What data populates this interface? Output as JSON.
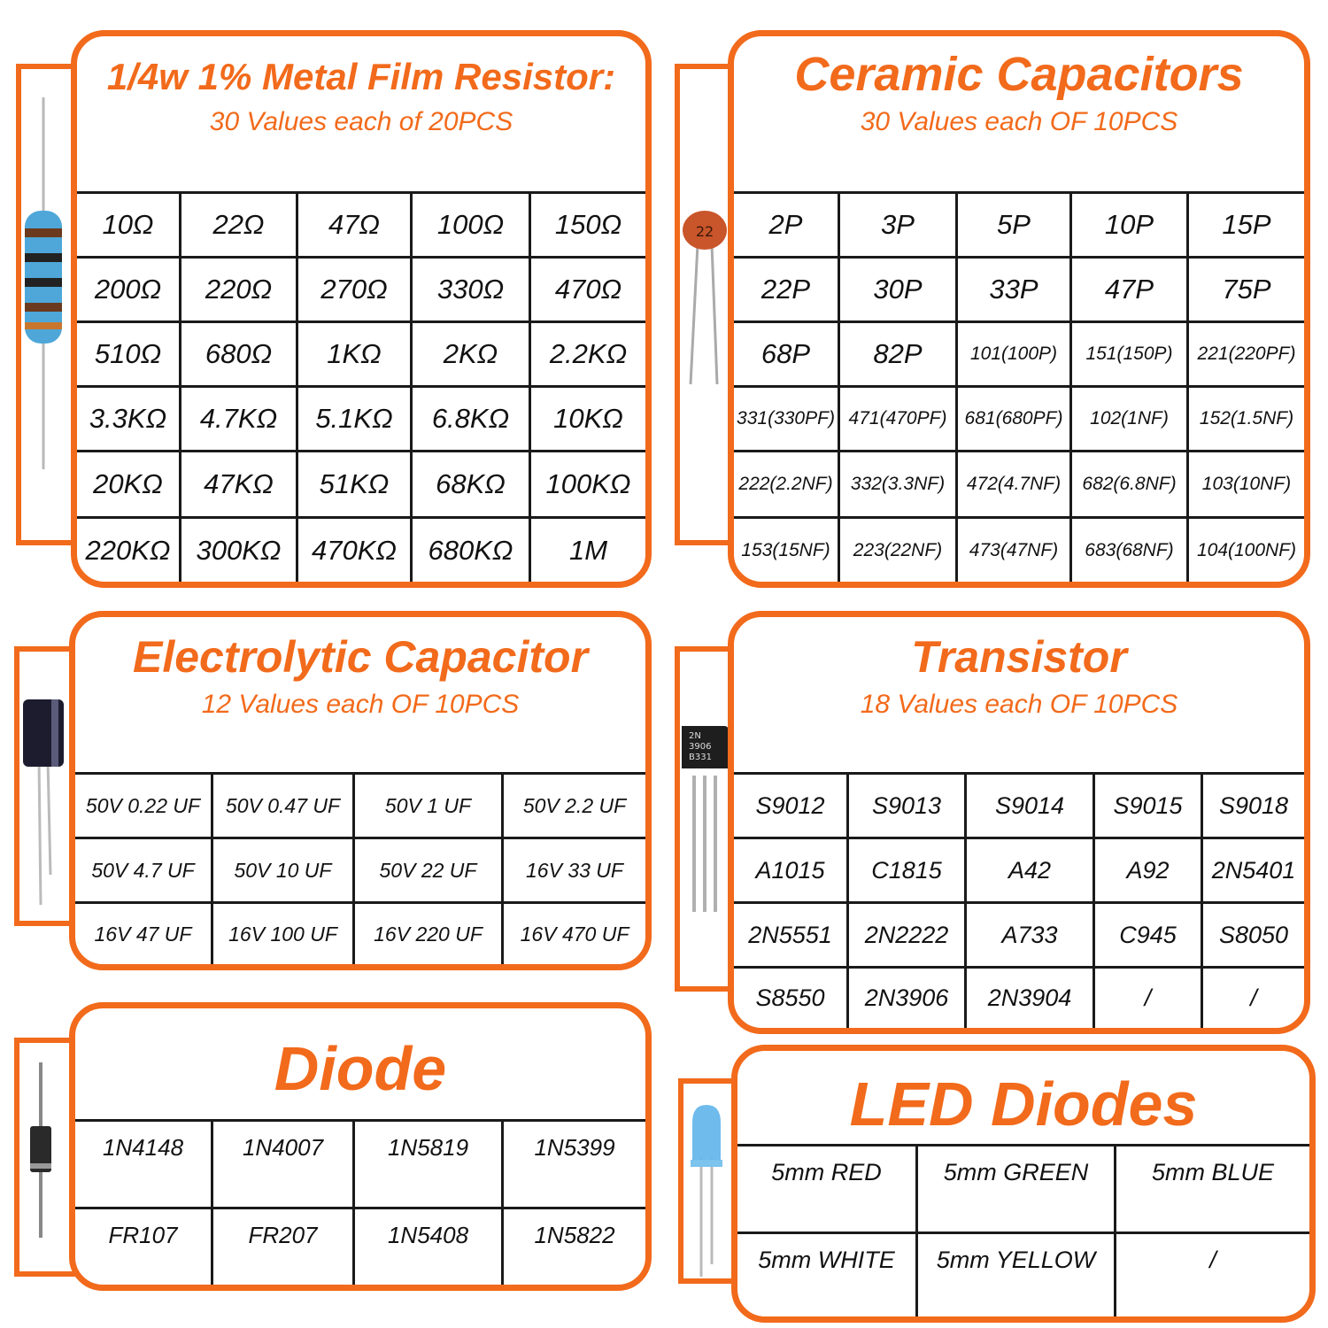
{
  "resistor": {
    "title": "1/4w 1% Metal Film Resistor:",
    "subtitle": "30 Values each of 20PCS",
    "cells": [
      "10Ω",
      "22Ω",
      "47Ω",
      "100Ω",
      "150Ω",
      "200Ω",
      "220Ω",
      "270Ω",
      "330Ω",
      "470Ω",
      "510Ω",
      "680Ω",
      "1KΩ",
      "2KΩ",
      "2.2KΩ",
      "3.3KΩ",
      "4.7KΩ",
      "5.1KΩ",
      "6.8KΩ",
      "10KΩ",
      "20KΩ",
      "47KΩ",
      "51KΩ",
      "68KΩ",
      "100KΩ",
      "220KΩ",
      "300KΩ",
      "470KΩ",
      "680KΩ",
      "1M"
    ]
  },
  "ceramic": {
    "title": "Ceramic Capacitors",
    "subtitle": "30 Values each OF 10PCS",
    "image_label": "22",
    "cells": [
      "2P",
      "3P",
      "5P",
      "10P",
      "15P",
      "22P",
      "30P",
      "33P",
      "47P",
      "75P",
      "68P",
      "82P",
      "101(100P)",
      "151(150P)",
      "221(220PF)",
      "331(330PF)",
      "471(470PF)",
      "681(680PF)",
      "102(1NF)",
      "152(1.5NF)",
      "222(2.2NF)",
      "332(3.3NF)",
      "472(4.7NF)",
      "682(6.8NF)",
      "103(10NF)",
      "153(15NF)",
      "223(22NF)",
      "473(47NF)",
      "683(68NF)",
      "104(100NF)"
    ]
  },
  "electrolytic": {
    "title": "Electrolytic Capacitor",
    "subtitle": "12 Values each OF 10PCS",
    "cells": [
      "50V  0.22 UF",
      "50V  0.47 UF",
      "50V  1 UF",
      "50V  2.2 UF",
      "50V  4.7 UF",
      "50V  10 UF",
      "50V  22 UF",
      "16V  33 UF",
      "16V  47 UF",
      "16V  100 UF",
      "16V  220 UF",
      "16V  470 UF"
    ]
  },
  "transistor": {
    "title": "Transistor",
    "subtitle": "18 Values each OF 10PCS",
    "image_label": [
      "2N",
      "3906",
      "B331"
    ],
    "cells": [
      "S9012",
      "S9013",
      "S9014",
      "S9015",
      "S9018",
      "A1015",
      "C1815",
      "A42",
      "A92",
      "2N5401",
      "2N5551",
      "2N2222",
      "A733",
      "C945",
      "S8050",
      "S8550",
      "2N3906",
      "2N3904",
      "/",
      "/"
    ]
  },
  "diode": {
    "title": "Diode",
    "cells": [
      "1N4148",
      "1N4007",
      "1N5819",
      "1N5399",
      "FR107",
      "FR207",
      "1N5408",
      "1N5822"
    ]
  },
  "led": {
    "title": "LED Diodes",
    "cells": [
      "5mm RED",
      "5mm GREEN",
      "5mm BLUE",
      "5mm WHITE",
      "5mm YELLOW",
      "/"
    ]
  },
  "colors": {
    "accent": "#f26a1b",
    "grid": "#1a1a1a"
  }
}
